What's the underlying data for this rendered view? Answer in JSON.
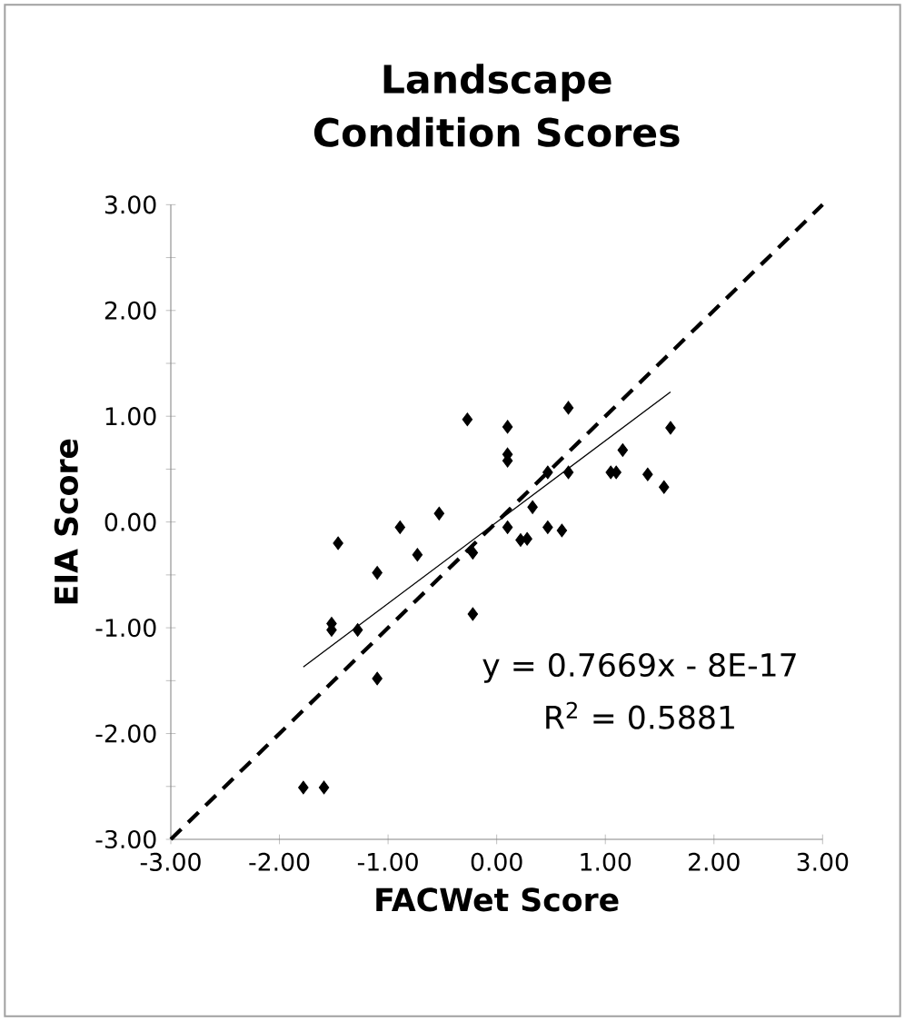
{
  "chart_data": {
    "type": "scatter",
    "title": "Landscape Condition Scores",
    "xlabel": "FACWet Score",
    "ylabel": "EIA Score",
    "xlim": [
      -3,
      3
    ],
    "ylim": [
      -3,
      3
    ],
    "xticks": [
      {
        "value": -3,
        "label": "-3.00"
      },
      {
        "value": -2,
        "label": "-2.00"
      },
      {
        "value": -1,
        "label": "-1.00"
      },
      {
        "value": 0,
        "label": "0.00"
      },
      {
        "value": 1,
        "label": "1.00"
      },
      {
        "value": 2,
        "label": "2.00"
      },
      {
        "value": 3,
        "label": "3.00"
      }
    ],
    "yticks": [
      {
        "value": -3,
        "label": "-3.00"
      },
      {
        "value": -2.5,
        "label": null
      },
      {
        "value": -2,
        "label": "-2.00"
      },
      {
        "value": -1.5,
        "label": null
      },
      {
        "value": -1,
        "label": "-1.00"
      },
      {
        "value": -0.5,
        "label": null
      },
      {
        "value": 0,
        "label": "0.00"
      },
      {
        "value": 0.5,
        "label": null
      },
      {
        "value": 1,
        "label": "1.00"
      },
      {
        "value": 1.5,
        "label": null
      },
      {
        "value": 2,
        "label": "2.00"
      },
      {
        "value": 2.5,
        "label": null
      },
      {
        "value": 3,
        "label": "3.00"
      }
    ],
    "annotations": [
      "y = 0.7669x - 8E-17",
      "R$^{2}$ = 0.5881"
    ],
    "series": [
      {
        "color": "#000000",
        "marker": "diamond",
        "x": [
          -0.27,
          0.1,
          0.1,
          0.1,
          0.66,
          1.6,
          1.16,
          0.47,
          0.66,
          1.05,
          1.1,
          1.39,
          1.54,
          0.33,
          -0.53,
          -0.89,
          0.1,
          0.47,
          0.6,
          0.22,
          0.28,
          -1.46,
          -0.73,
          -0.22,
          -1.1,
          -0.22,
          -1.52,
          -1.52,
          -1.28,
          -1.1,
          -1.78,
          -1.59
        ],
        "values": [
          0.97,
          0.9,
          0.64,
          0.58,
          1.08,
          0.89,
          0.68,
          0.47,
          0.47,
          0.47,
          0.47,
          0.45,
          0.33,
          0.14,
          0.08,
          -0.05,
          -0.05,
          -0.05,
          -0.08,
          -0.17,
          -0.16,
          -0.2,
          -0.31,
          -0.29,
          -0.48,
          -0.87,
          -0.96,
          -1.02,
          -1.02,
          -1.48,
          -2.51,
          -2.51
        ]
      },
      {
        "type": "line",
        "color": "#000000",
        "line_style": "solid",
        "x": [
          -1.78,
          1.6
        ],
        "values": [
          -1.37,
          1.23
        ]
      },
      {
        "type": "line",
        "color": "#000000",
        "line_style": "dashed",
        "x": [
          -3,
          3
        ],
        "values": [
          -3,
          3
        ]
      }
    ]
  }
}
